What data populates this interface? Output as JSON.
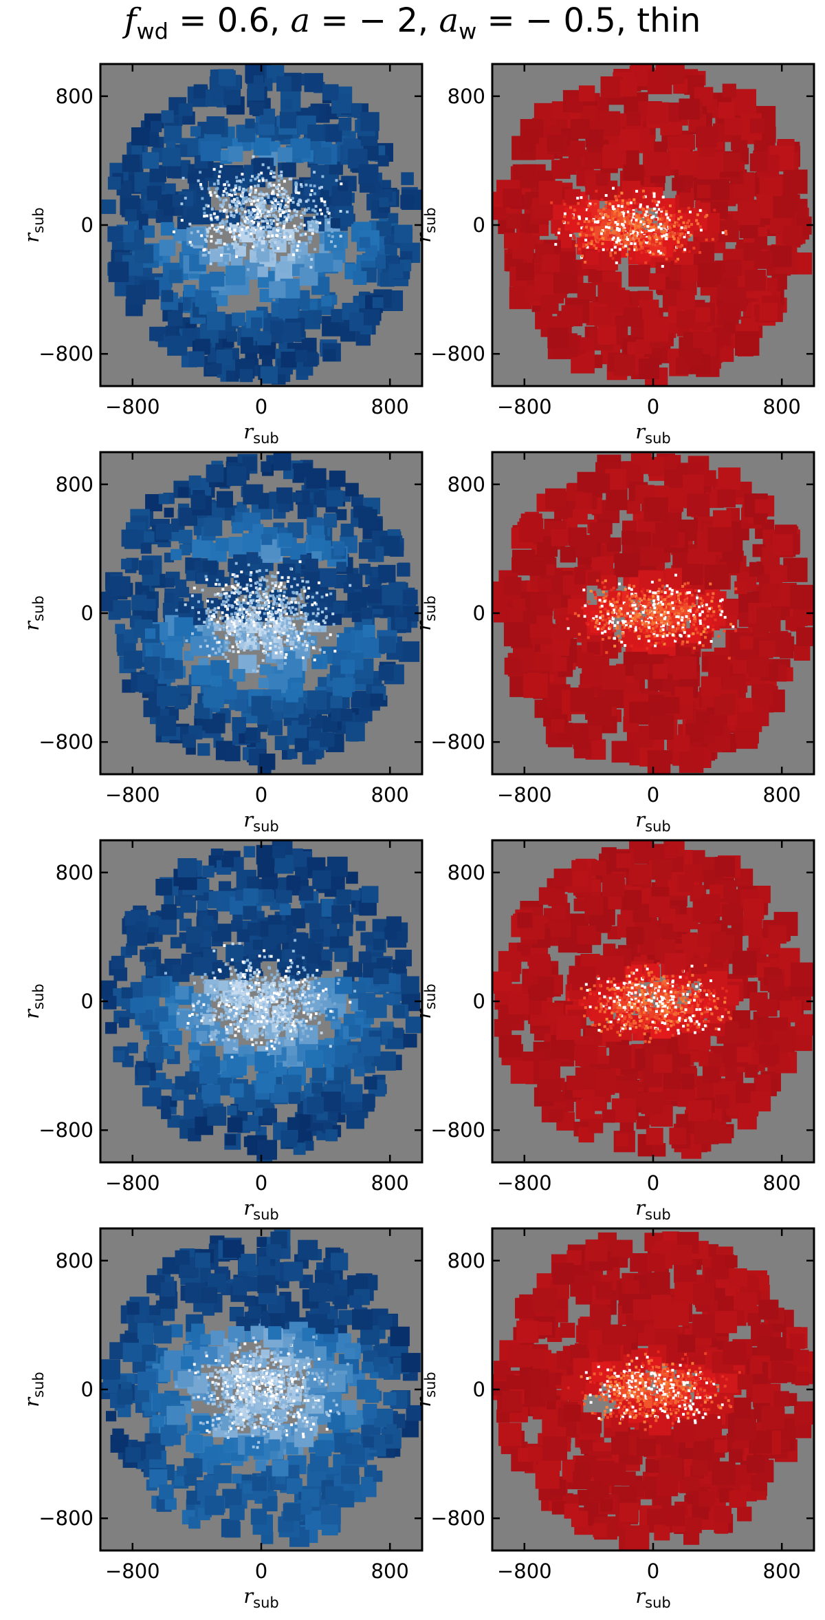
{
  "title": {
    "f": "f",
    "f_sub": "wd",
    "f_val": " = 0.6, ",
    "a": "a",
    "a_val": " = − 2, ",
    "aw": "a",
    "aw_sub": "w",
    "aw_val": " = − 0.5, thin"
  },
  "colors": {
    "background": "#808080",
    "blue_dark": "#08306b",
    "blue_mid": "#2171b5",
    "blue_light": "#c6dbef",
    "red_dark": "#a50f15",
    "red_mid": "#e31a1c",
    "red_light": "#fd8d3c"
  },
  "chart_data": [
    {
      "type": "heatmap",
      "row": 1,
      "col": 1,
      "colormap": "blues",
      "pattern": "band-top",
      "xlabel": "r",
      "xlabel_sub": "sub",
      "ylabel": "r",
      "ylabel_sub": "sub",
      "xlim": [
        -1000,
        1000
      ],
      "ylim": [
        -1000,
        1000
      ],
      "xticks": [
        -800,
        0,
        800
      ],
      "yticks": [
        -800,
        0,
        800
      ]
    },
    {
      "type": "heatmap",
      "row": 1,
      "col": 2,
      "colormap": "reds",
      "pattern": "core-left",
      "xlabel": "r",
      "xlabel_sub": "sub",
      "ylabel": "r",
      "ylabel_sub": "sub",
      "xlim": [
        -1000,
        1000
      ],
      "ylim": [
        -1000,
        1000
      ],
      "xticks": [
        -800,
        0,
        800
      ],
      "yticks": [
        -800,
        0,
        800
      ]
    },
    {
      "type": "heatmap",
      "row": 2,
      "col": 1,
      "colormap": "blues",
      "pattern": "band-mid",
      "xlabel": "r",
      "xlabel_sub": "sub",
      "ylabel": "r",
      "ylabel_sub": "sub",
      "xlim": [
        -1000,
        1000
      ],
      "ylim": [
        -1000,
        1000
      ],
      "xticks": [
        -800,
        0,
        800
      ],
      "yticks": [
        -800,
        0,
        800
      ]
    },
    {
      "type": "heatmap",
      "row": 2,
      "col": 2,
      "colormap": "reds",
      "pattern": "core-center",
      "xlabel": "r",
      "xlabel_sub": "sub",
      "ylabel": "r",
      "ylabel_sub": "sub",
      "xlim": [
        -1000,
        1000
      ],
      "ylim": [
        -1000,
        1000
      ],
      "xticks": [
        -800,
        0,
        800
      ],
      "yticks": [
        -800,
        0,
        800
      ]
    },
    {
      "type": "heatmap",
      "row": 3,
      "col": 1,
      "colormap": "blues",
      "pattern": "band-upper",
      "xlabel": "r",
      "xlabel_sub": "sub",
      "ylabel": "r",
      "ylabel_sub": "sub",
      "xlim": [
        -1000,
        1000
      ],
      "ylim": [
        -1000,
        1000
      ],
      "xticks": [
        -800,
        0,
        800
      ],
      "yticks": [
        -800,
        0,
        800
      ]
    },
    {
      "type": "heatmap",
      "row": 3,
      "col": 2,
      "colormap": "reds",
      "pattern": "core-center",
      "xlabel": "r",
      "xlabel_sub": "sub",
      "ylabel": "r",
      "ylabel_sub": "sub",
      "xlim": [
        -1000,
        1000
      ],
      "ylim": [
        -1000,
        1000
      ],
      "xticks": [
        -800,
        0,
        800
      ],
      "yticks": [
        -800,
        0,
        800
      ]
    },
    {
      "type": "heatmap",
      "row": 4,
      "col": 1,
      "colormap": "blues",
      "pattern": "band-two",
      "xlabel": "r",
      "xlabel_sub": "sub",
      "ylabel": "r",
      "ylabel_sub": "sub",
      "xlim": [
        -1000,
        1000
      ],
      "ylim": [
        -1000,
        1000
      ],
      "xticks": [
        -800,
        0,
        800
      ],
      "yticks": [
        -800,
        0,
        800
      ]
    },
    {
      "type": "heatmap",
      "row": 4,
      "col": 2,
      "colormap": "reds",
      "pattern": "core-center",
      "xlabel": "r",
      "xlabel_sub": "sub",
      "ylabel": "r",
      "ylabel_sub": "sub",
      "xlim": [
        -1000,
        1000
      ],
      "ylim": [
        -1000,
        1000
      ],
      "xticks": [
        -800,
        0,
        800
      ],
      "yticks": [
        -800,
        0,
        800
      ]
    }
  ]
}
